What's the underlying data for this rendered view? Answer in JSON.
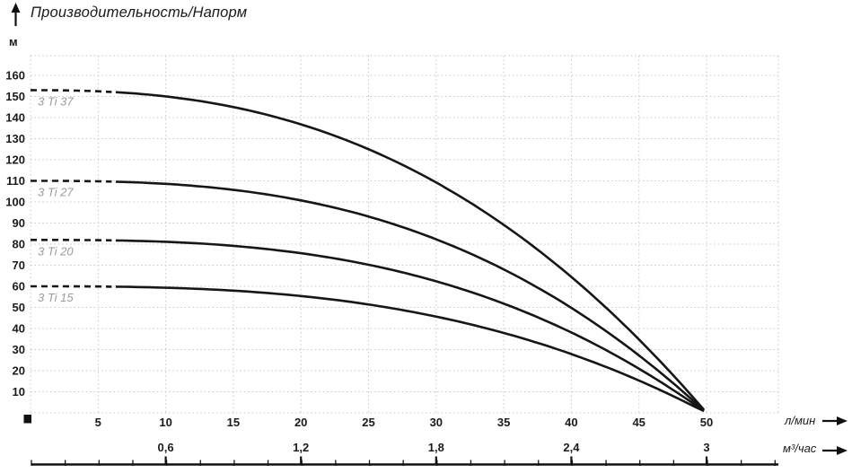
{
  "chart_data": {
    "type": "line",
    "title": "Производительность/Напорм",
    "y_axis": {
      "unit": "м",
      "ticks": [
        160,
        150,
        140,
        130,
        120,
        110,
        100,
        90,
        80,
        70,
        60,
        50,
        40,
        30,
        20,
        10
      ],
      "range": [
        0,
        169
      ]
    },
    "x_axis_primary": {
      "unit": "л/мин",
      "ticks": [
        5,
        10,
        15,
        20,
        25,
        30,
        35,
        40,
        45,
        50
      ],
      "range": [
        0,
        55.3
      ]
    },
    "x_axis_secondary": {
      "unit": "м³/час",
      "tick_labels": [
        "0,6",
        "1,2",
        "1,8",
        "2,4",
        "3"
      ],
      "tick_values": [
        0.6,
        1.2,
        1.8,
        2.4,
        3
      ]
    },
    "grid": true,
    "legend_position": "on-curve-labels",
    "curve_color": "#161616",
    "grid_color": "#c9c9c9",
    "curve_label_color": "#9b9b9b",
    "converge_point": {
      "q_lmin": 50,
      "head_m": 1
    },
    "dashed_segment_end_q": 6.3,
    "series": [
      {
        "name": "3 Ti 37",
        "shutoff_head_m": 153,
        "curve_exponent": 2.45,
        "q_lmin": [
          0,
          5,
          10,
          15,
          20,
          25,
          30,
          35,
          40,
          45,
          50
        ],
        "head_m": [
          153,
          152.5,
          150.0,
          145.0,
          136.8,
          125.0,
          109.2,
          89.1,
          64.4,
          34.8,
          1
        ]
      },
      {
        "name": "3 Ti 27",
        "shutoff_head_m": 110,
        "curve_exponent": 2.7,
        "q_lmin": [
          0,
          5,
          10,
          15,
          20,
          25,
          30,
          35,
          40,
          45,
          50
        ],
        "head_m": [
          110,
          109.8,
          108.6,
          105.7,
          100.7,
          93.1,
          82.3,
          68.0,
          49.8,
          27.2,
          1
        ]
      },
      {
        "name": "3 Ti 20",
        "shutoff_head_m": 82,
        "curve_exponent": 2.8,
        "q_lmin": [
          0,
          5,
          10,
          15,
          20,
          25,
          30,
          35,
          40,
          45,
          50
        ],
        "head_m": [
          82,
          81.9,
          81.1,
          79.2,
          75.7,
          70.2,
          62.4,
          51.8,
          38.1,
          21.0,
          1
        ]
      },
      {
        "name": "3 Ti 15",
        "shutoff_head_m": 60,
        "curve_exponent": 2.8,
        "q_lmin": [
          0,
          5,
          10,
          15,
          20,
          25,
          30,
          35,
          40,
          45,
          50
        ],
        "head_m": [
          60,
          59.9,
          59.3,
          57.9,
          55.4,
          51.4,
          45.6,
          37.9,
          27.9,
          15.3,
          1
        ]
      }
    ]
  }
}
